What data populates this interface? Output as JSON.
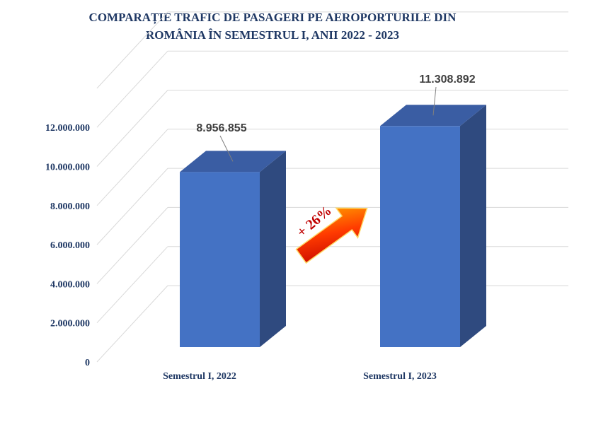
{
  "chart_data": {
    "type": "bar",
    "title_lines": [
      "COMPARAȚIE TRAFIC DE PASAGERI PE AEROPORTURILE DIN",
      "ROMÂNIA ÎN SEMESTRUL I, ANII 2022 - 2023"
    ],
    "categories": [
      "Semestrul I, 2022",
      "Semestrul I, 2023"
    ],
    "values": [
      8956855,
      11308892
    ],
    "data_labels": [
      "8.956.855",
      "11.308.892"
    ],
    "ylim": [
      0,
      14000000
    ],
    "yticks": [
      0,
      2000000,
      4000000,
      6000000,
      8000000,
      10000000,
      12000000
    ],
    "ytick_labels": [
      "0",
      "2.000.000",
      "4.000.000",
      "6.000.000",
      "8.000.000",
      "10.000.000",
      "12.000.000"
    ],
    "grid": true,
    "style": "3d-column",
    "bar_color": "#4472c4",
    "annotation": "+ 26%"
  }
}
